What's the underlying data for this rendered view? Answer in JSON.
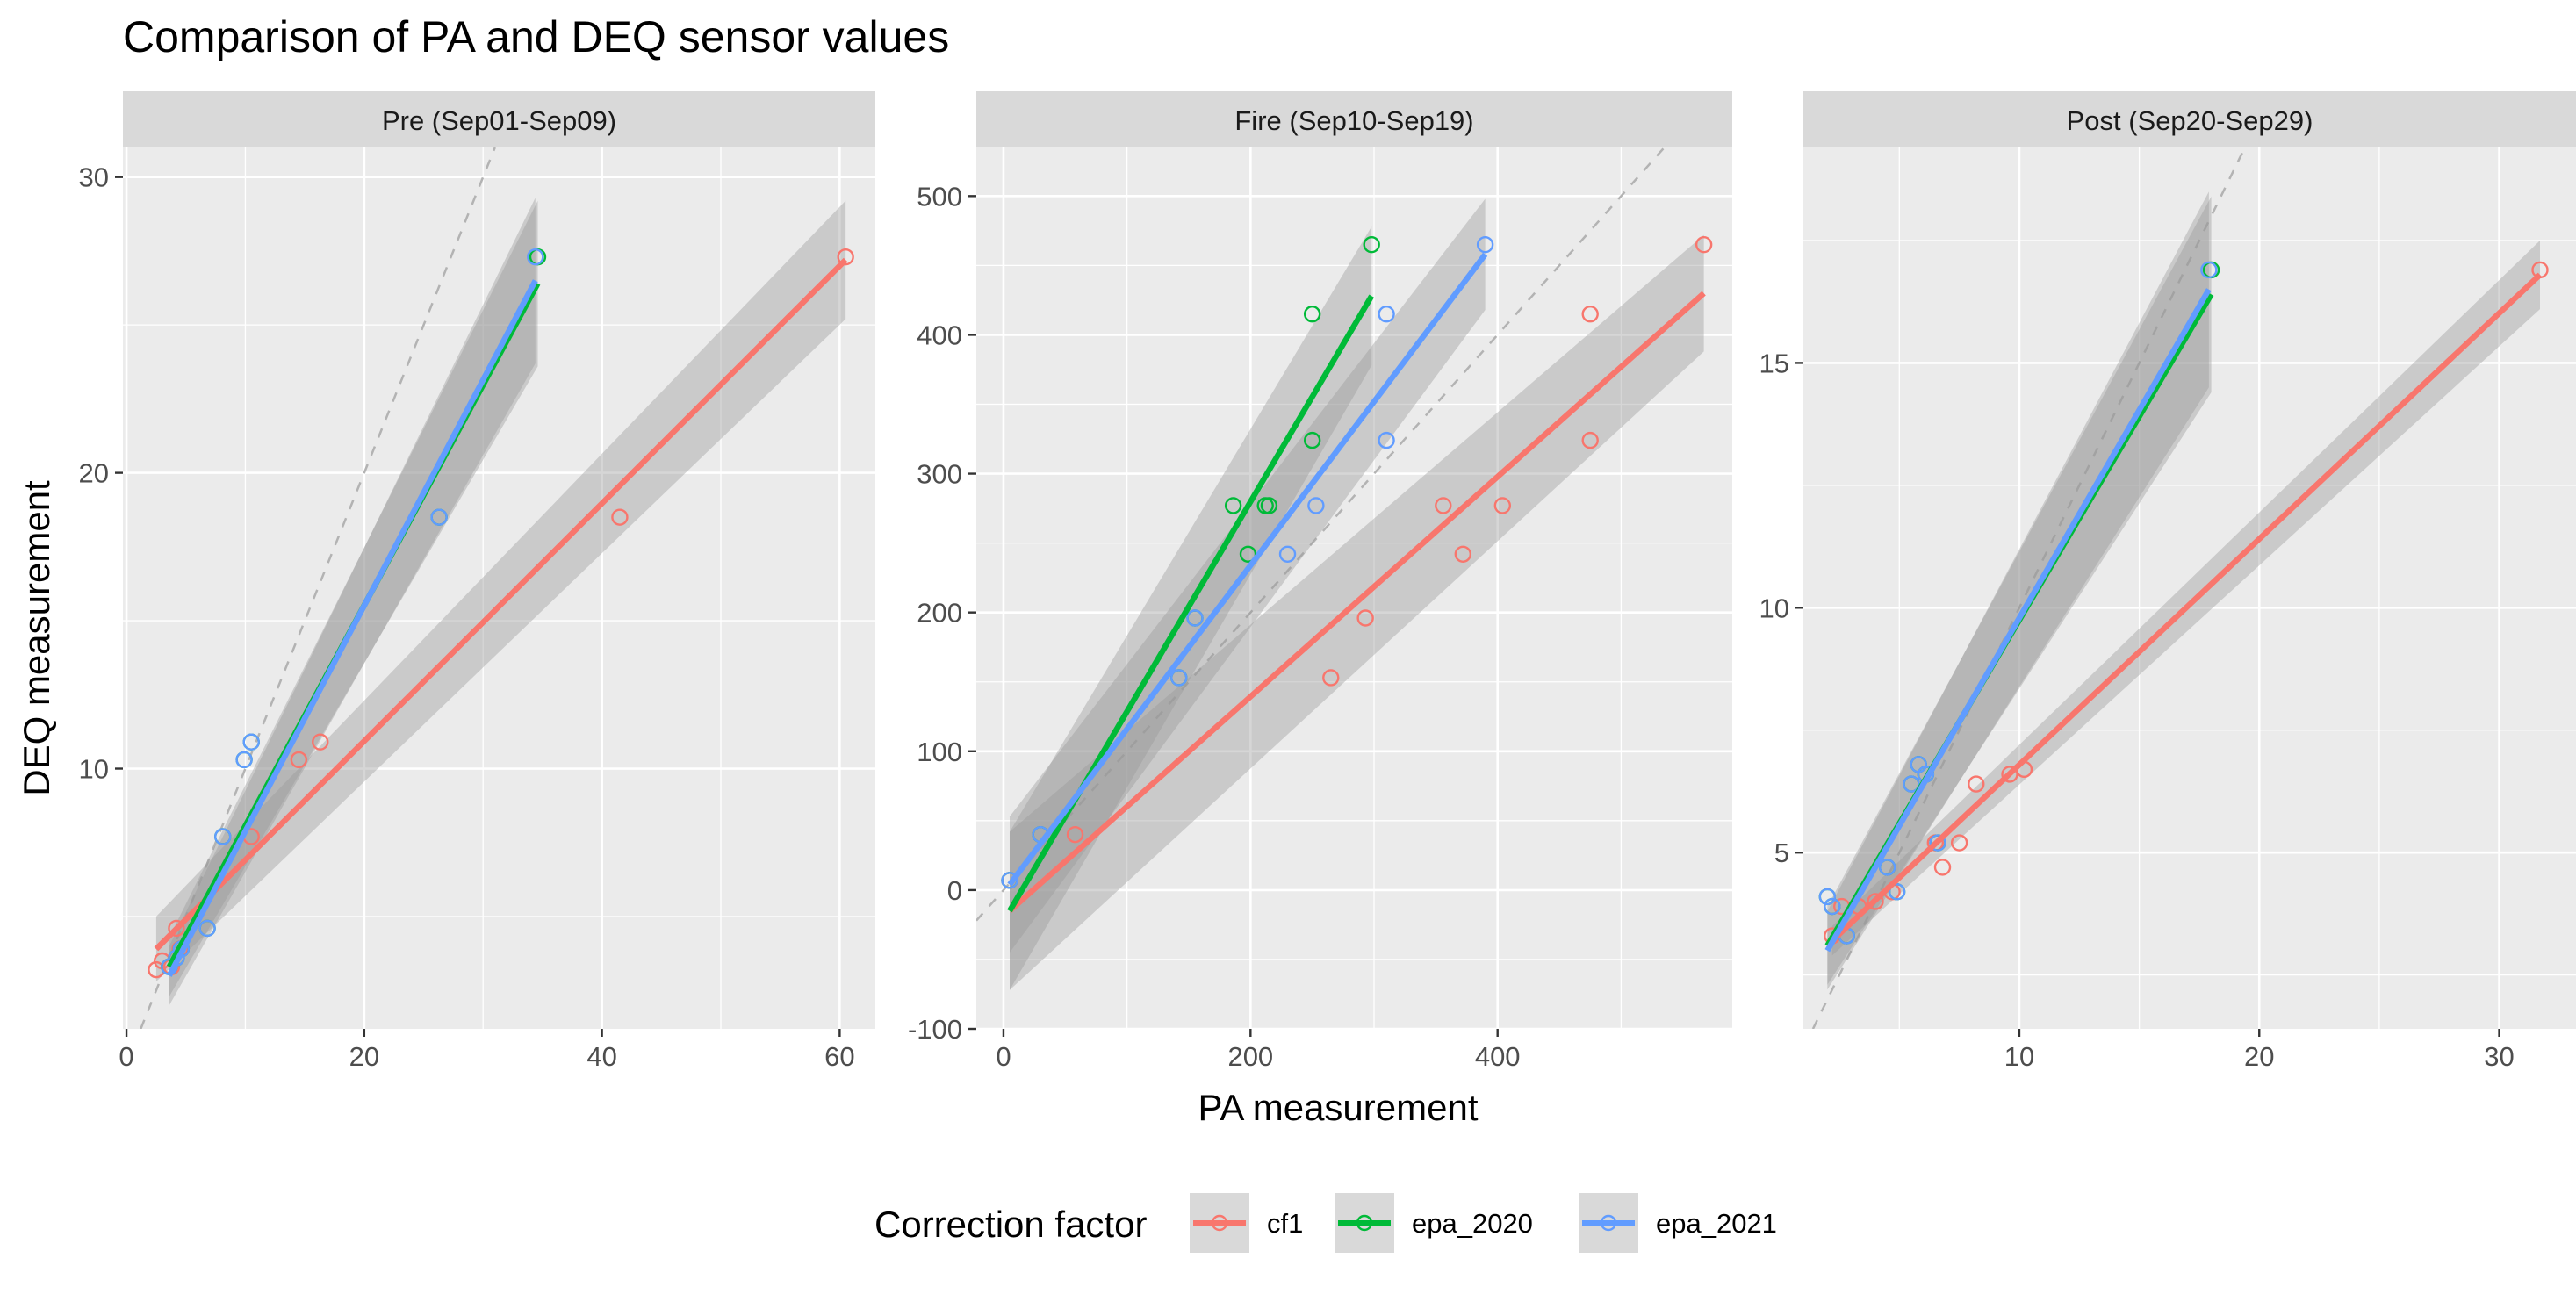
{
  "chart_data": {
    "type": "scatter",
    "title": "Comparison of PA and DEQ sensor values",
    "xlabel": "PA measurement",
    "ylabel": "DEQ measurement",
    "legend": {
      "title": "Correction factor",
      "placement": "bottom",
      "entries": [
        {
          "name": "cf1",
          "color": "#F8766D"
        },
        {
          "name": "epa_2020",
          "color": "#00BA38"
        },
        {
          "name": "epa_2021",
          "color": "#619CFF"
        }
      ]
    },
    "reference_line": "y = x (dashed grey)",
    "grid": true,
    "facets": [
      {
        "label": "Pre (Sep01-Sep09)",
        "xlim": [
          -0.3,
          63
        ],
        "ylim": [
          1.2,
          31
        ],
        "xticks": [
          0,
          20,
          40,
          60
        ],
        "yticks": [
          10,
          20,
          30
        ],
        "series": [
          {
            "name": "cf1",
            "points": [
              [
                2.5,
                3.2
              ],
              [
                3.0,
                3.5
              ],
              [
                3.8,
                3.3
              ],
              [
                4.2,
                4.6
              ],
              [
                4.5,
                3.9
              ],
              [
                10.5,
                7.7
              ],
              [
                14.5,
                10.3
              ],
              [
                16.3,
                10.9
              ],
              [
                41.5,
                18.5
              ],
              [
                60.5,
                27.3
              ]
            ],
            "fit": {
              "x": [
                2.5,
                60.5
              ],
              "y": [
                3.9,
                27.2
              ],
              "se_low": [
                2.8,
                25.2
              ],
              "se_high": [
                5.0,
                29.2
              ]
            }
          },
          {
            "name": "epa_2020",
            "points": [
              [
                3.6,
                3.3
              ],
              [
                4.2,
                3.6
              ],
              [
                4.6,
                3.9
              ],
              [
                6.8,
                4.6
              ],
              [
                8.1,
                7.7
              ],
              [
                9.9,
                10.3
              ],
              [
                10.5,
                10.9
              ],
              [
                26.3,
                18.5
              ],
              [
                34.6,
                27.3
              ]
            ],
            "fit": {
              "x": [
                3.6,
                34.6
              ],
              "y": [
                3.3,
                26.4
              ],
              "se_low": [
                2.3,
                23.6
              ],
              "se_high": [
                4.3,
                29.2
              ]
            }
          },
          {
            "name": "epa_2021",
            "points": [
              [
                3.6,
                3.3
              ],
              [
                4.2,
                3.6
              ],
              [
                4.6,
                3.9
              ],
              [
                6.8,
                4.6
              ],
              [
                8.1,
                7.7
              ],
              [
                9.9,
                10.3
              ],
              [
                10.5,
                10.9
              ],
              [
                26.3,
                18.5
              ],
              [
                34.4,
                27.3
              ]
            ],
            "fit": {
              "x": [
                3.6,
                34.4
              ],
              "y": [
                3.0,
                26.5
              ],
              "se_low": [
                2.0,
                23.7
              ],
              "se_high": [
                4.0,
                29.3
              ]
            }
          }
        ]
      },
      {
        "label": "Fire (Sep10-Sep19)",
        "xlim": [
          -22,
          590
        ],
        "ylim": [
          -100,
          535
        ],
        "xticks": [
          0,
          200,
          400
        ],
        "yticks": [
          -100,
          0,
          100,
          200,
          300,
          400,
          500
        ],
        "series": [
          {
            "name": "cf1",
            "points": [
              [
                5,
                7
              ],
              [
                58,
                40
              ],
              [
                265,
                153
              ],
              [
                293,
                196
              ],
              [
                356,
                277
              ],
              [
                372,
                242
              ],
              [
                404,
                277
              ],
              [
                475,
                415
              ],
              [
                475,
                324
              ],
              [
                567,
                465
              ]
            ],
            "fit": {
              "x": [
                5,
                567
              ],
              "y": [
                -15,
                430
              ],
              "se_low": [
                -72,
                388
              ],
              "se_high": [
                42,
                472
              ]
            }
          },
          {
            "name": "epa_2020",
            "points": [
              [
                5,
                7
              ],
              [
                30,
                40
              ],
              [
                142,
                153
              ],
              [
                155,
                196
              ],
              [
                186,
                277
              ],
              [
                198,
                242
              ],
              [
                212,
                277
              ],
              [
                215,
                277
              ],
              [
                250,
                415
              ],
              [
                250,
                324
              ],
              [
                298,
                465
              ]
            ],
            "fit": {
              "x": [
                5,
                298
              ],
              "y": [
                -15,
                428
              ],
              "se_low": [
                -72,
                378
              ],
              "se_high": [
                42,
                478
              ]
            }
          },
          {
            "name": "epa_2021",
            "points": [
              [
                5,
                7
              ],
              [
                30,
                40
              ],
              [
                142,
                153
              ],
              [
                155,
                196
              ],
              [
                230,
                242
              ],
              [
                253,
                277
              ],
              [
                310,
                415
              ],
              [
                310,
                324
              ],
              [
                390,
                465
              ]
            ],
            "fit": {
              "x": [
                5,
                390
              ],
              "y": [
                4,
                458
              ],
              "se_low": [
                -45,
                418
              ],
              "se_high": [
                53,
                498
              ]
            }
          }
        ]
      },
      {
        "label": "Post (Sep20-Sep29)",
        "xlim": [
          1.0,
          33.2
        ],
        "ylim": [
          1.4,
          19.4
        ],
        "xticks": [
          10,
          20,
          30
        ],
        "yticks": [
          5,
          10,
          15
        ],
        "series": [
          {
            "name": "cf1",
            "points": [
              [
                2.2,
                3.3
              ],
              [
                2.6,
                3.9
              ],
              [
                3.3,
                3.9
              ],
              [
                4.0,
                4.0
              ],
              [
                4.7,
                4.2
              ],
              [
                6.5,
                5.2
              ],
              [
                6.8,
                4.7
              ],
              [
                7.5,
                5.2
              ],
              [
                8.2,
                6.4
              ],
              [
                9.6,
                6.6
              ],
              [
                10.2,
                6.7
              ],
              [
                31.7,
                16.9
              ]
            ],
            "fit": {
              "x": [
                2.2,
                31.7
              ],
              "y": [
                3.2,
                16.8
              ],
              "se_low": [
                2.9,
                16.1
              ],
              "se_high": [
                3.5,
                17.5
              ]
            }
          },
          {
            "name": "epa_2020",
            "points": [
              [
                2.0,
                4.1
              ],
              [
                2.2,
                3.9
              ],
              [
                2.8,
                3.3
              ],
              [
                4.5,
                4.7
              ],
              [
                4.9,
                4.2
              ],
              [
                5.5,
                6.4
              ],
              [
                5.8,
                6.8
              ],
              [
                6.1,
                6.6
              ],
              [
                6.6,
                5.2
              ],
              [
                18.0,
                16.9
              ]
            ],
            "fit": {
              "x": [
                2.0,
                18.0
              ],
              "y": [
                3.1,
                16.4
              ],
              "se_low": [
                2.3,
                14.4
              ],
              "se_high": [
                3.9,
                18.4
              ]
            }
          },
          {
            "name": "epa_2021",
            "points": [
              [
                2.0,
                4.1
              ],
              [
                2.2,
                3.9
              ],
              [
                2.8,
                3.3
              ],
              [
                4.5,
                4.7
              ],
              [
                4.9,
                4.2
              ],
              [
                5.5,
                6.4
              ],
              [
                5.8,
                6.8
              ],
              [
                6.1,
                6.6
              ],
              [
                6.6,
                5.2
              ],
              [
                17.9,
                16.9
              ]
            ],
            "fit": {
              "x": [
                2.0,
                17.9
              ],
              "y": [
                3.0,
                16.5
              ],
              "se_low": [
                2.2,
                14.5
              ],
              "se_high": [
                3.8,
                18.5
              ]
            }
          }
        ]
      }
    ]
  }
}
